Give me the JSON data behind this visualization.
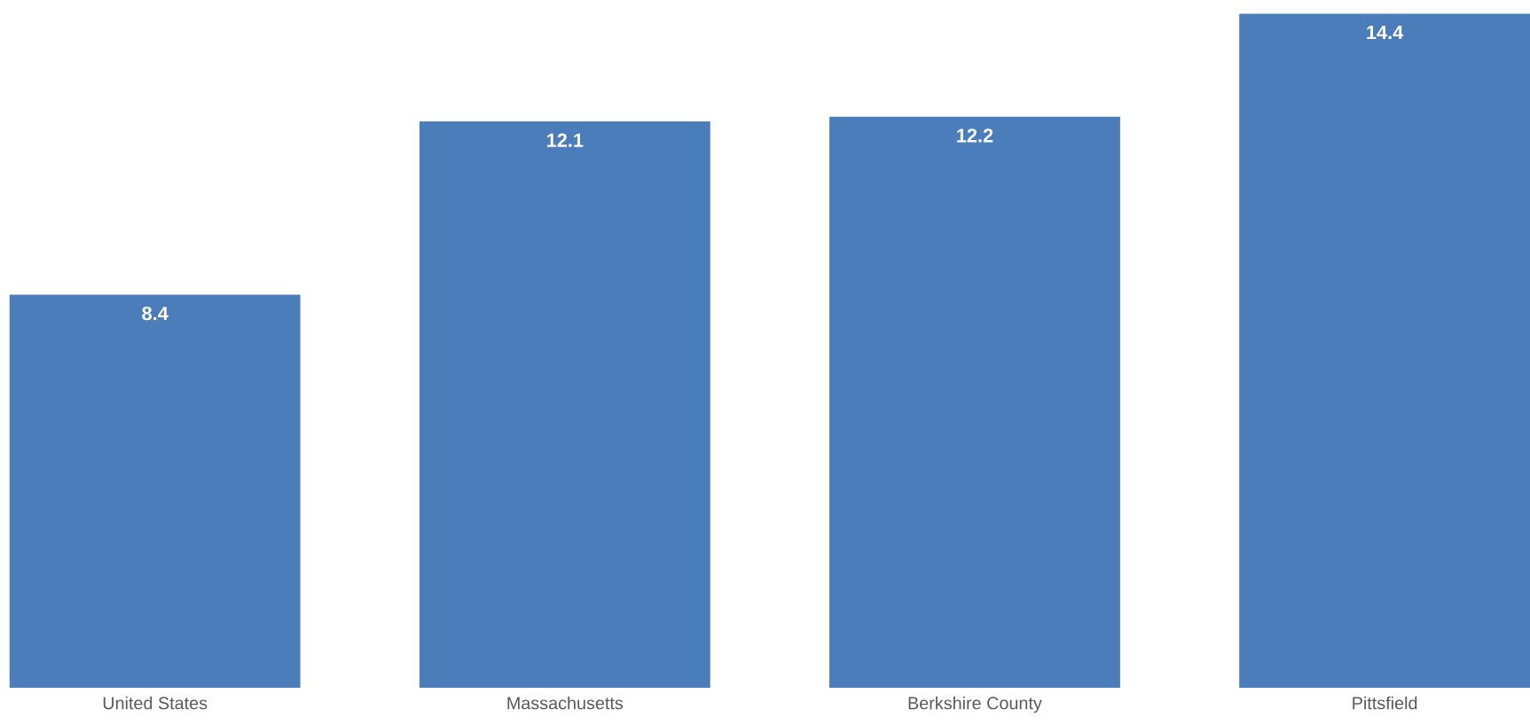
{
  "chart_data": {
    "type": "bar",
    "categories": [
      "United States",
      "Massachusetts",
      "Berkshire County",
      "Pittsfield"
    ],
    "values": [
      8.4,
      12.1,
      12.2,
      14.4
    ],
    "color": "#4a7dba",
    "data_labels": true
  }
}
